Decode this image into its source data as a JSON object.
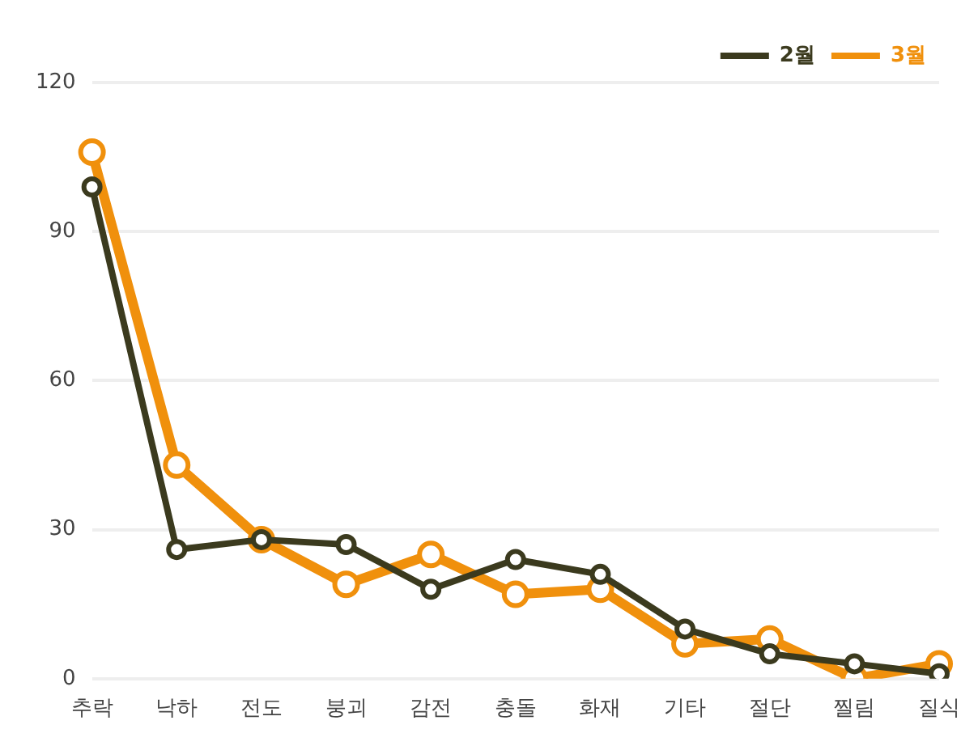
{
  "chart_data": {
    "type": "line",
    "categories": [
      "추락",
      "낙하",
      "전도",
      "붕괴",
      "감전",
      "충돌",
      "화재",
      "기타",
      "절단",
      "찔림",
      "질식"
    ],
    "series": [
      {
        "name": "2월",
        "color": "#3b3a1e",
        "values": [
          99,
          26,
          28,
          27,
          18,
          24,
          21,
          10,
          5,
          3,
          1
        ]
      },
      {
        "name": "3월",
        "color": "#f0900c",
        "values": [
          106,
          43,
          28,
          19,
          25,
          17,
          18,
          7,
          8,
          0,
          3
        ]
      }
    ],
    "ylim": [
      0,
      120
    ],
    "yticks": [
      0,
      30,
      60,
      90,
      120
    ],
    "grid": "y",
    "legend": "top right",
    "marker": "circle",
    "line_style": "solid"
  }
}
